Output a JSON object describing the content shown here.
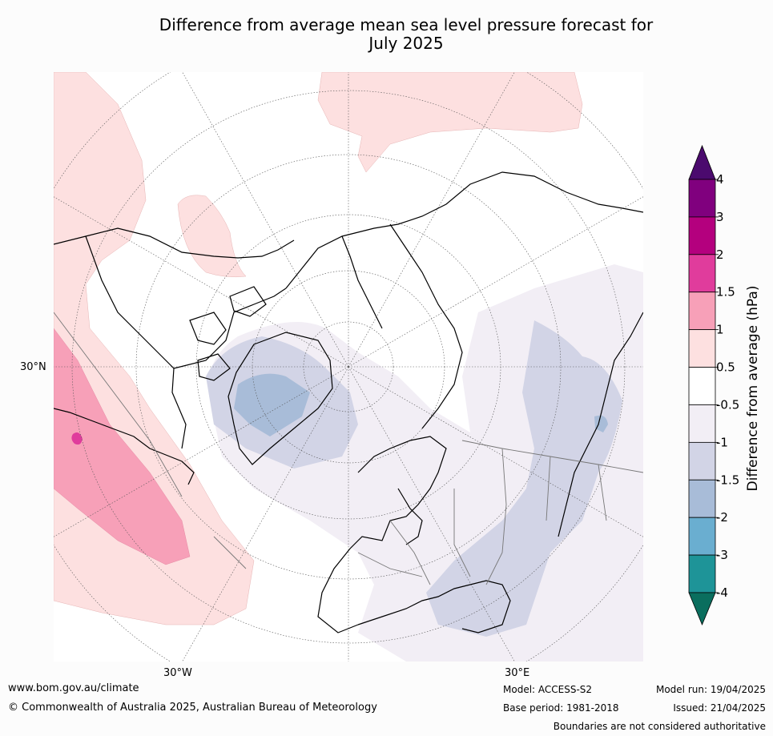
{
  "title_line1": "Difference from average mean sea level pressure forecast for",
  "title_line2": "July 2025",
  "graticule_labels": {
    "lat": "30°N",
    "lon_west": "30°W",
    "lon_east": "30°E"
  },
  "colorbar": {
    "label": "Difference from average (hPa)",
    "ticks": [
      "4",
      "3",
      "2",
      "1.5",
      "1",
      "0.5",
      "-0.5",
      "-1",
      "-1.5",
      "-2",
      "-3",
      "-4"
    ],
    "band_colors": [
      "#80007e",
      "#b4007e",
      "#e03c9c",
      "#f7a0b8",
      "#fde0e0",
      "#ffffff",
      "#f2eef5",
      "#d2d4e6",
      "#a8bcd8",
      "#6aaed0",
      "#1e9498"
    ],
    "extend_max_color": "#4b0a6e",
    "extend_min_color": "#0a6e5e"
  },
  "footer": {
    "website": "www.bom.gov.au/climate",
    "copyright": "© Commonwealth of Australia 2025, Australian Bureau of Meteorology",
    "model": "Model: ACCESS-S2",
    "base_period": "Base period: 1981-2018",
    "model_run": "Model run: 19/04/2025",
    "issued": "Issued: 21/04/2025",
    "disclaimer": "Boundaries are not considered authoritative"
  }
}
